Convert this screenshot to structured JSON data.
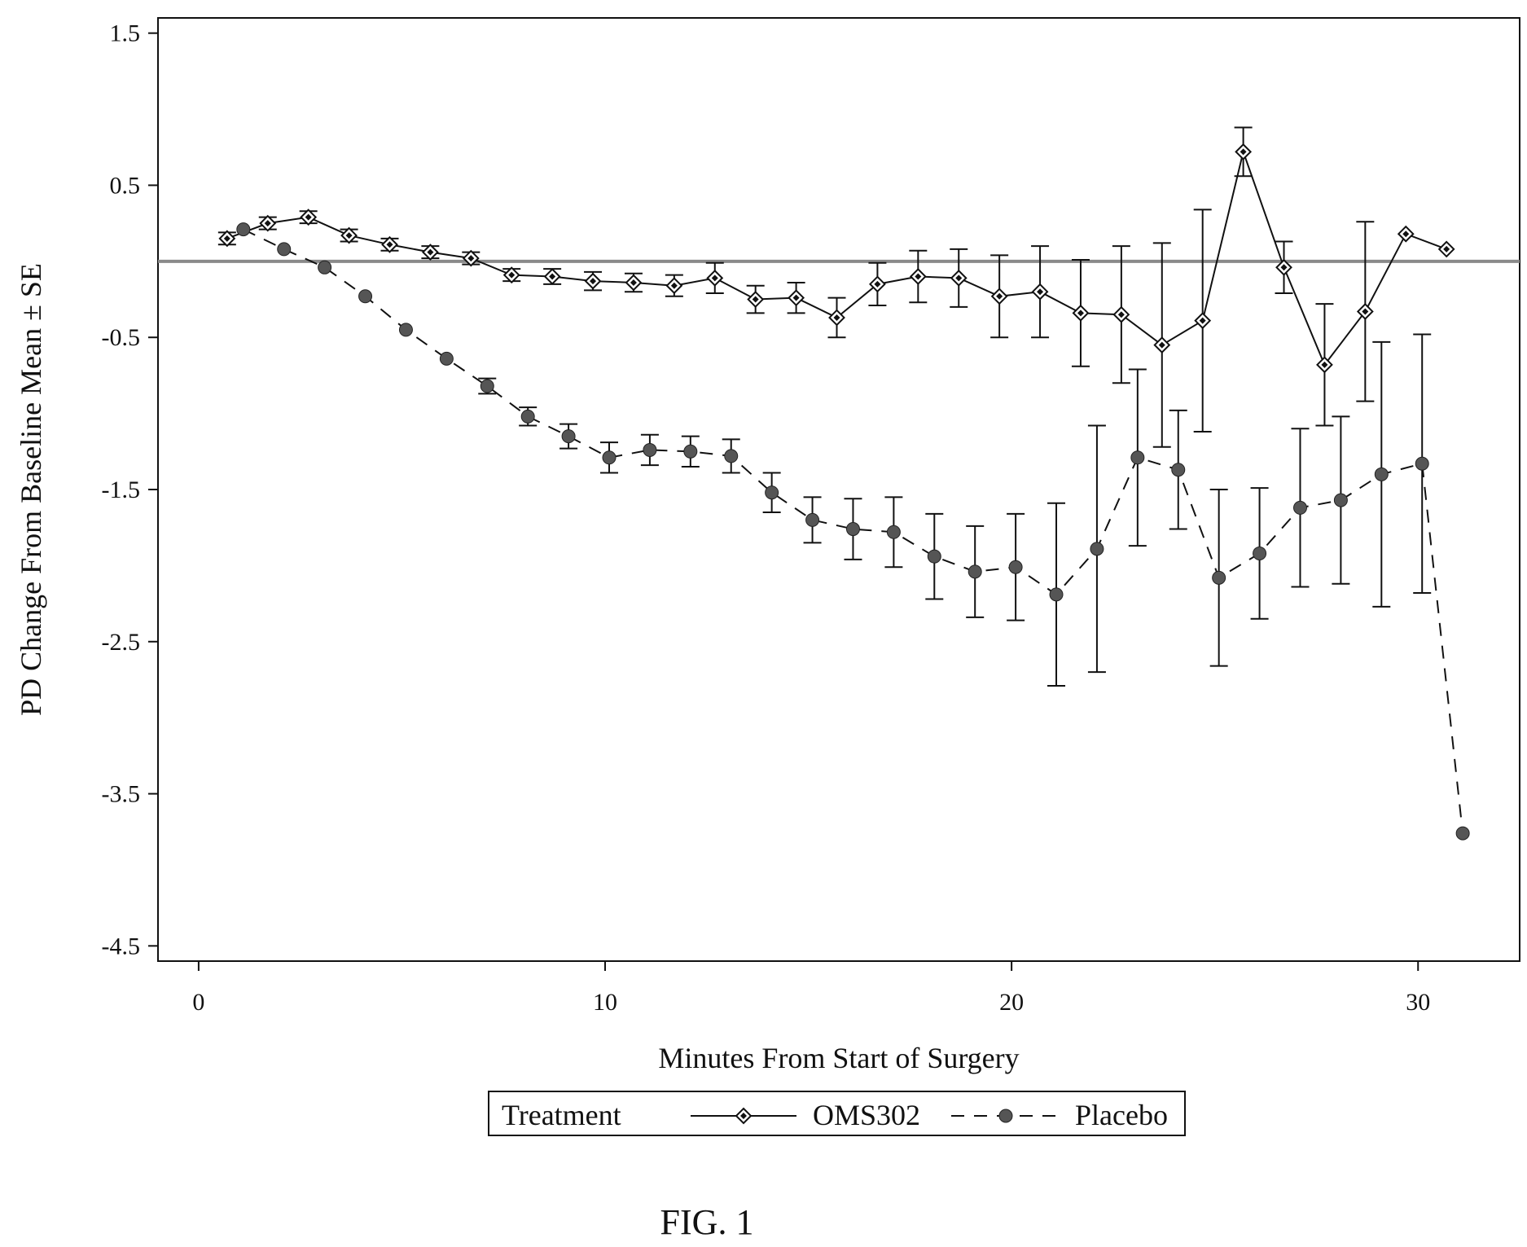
{
  "figure_caption": "FIG. 1",
  "chart_data": {
    "type": "line",
    "xlabel": "Minutes From Start of Surgery",
    "ylabel": "PD Change From Baseline Mean ± SE",
    "xlim": [
      -1,
      32.5
    ],
    "ylim": [
      -4.6,
      1.6
    ],
    "x_ticks": [
      0,
      10,
      20,
      30
    ],
    "y_ticks": [
      1.5,
      0.5,
      -0.5,
      -1.5,
      -2.5,
      -3.5,
      -4.5
    ],
    "y_tick_labels": [
      "1.5",
      "0.5",
      "-0.5",
      "-1.5",
      "-2.5",
      "-3.5",
      "-4.5"
    ],
    "reference_line": 0,
    "grid": false,
    "legend": {
      "title": "Treatment",
      "placement": "bottom",
      "entries": [
        "OMS302",
        "Placebo"
      ]
    },
    "series": [
      {
        "name": "OMS302",
        "marker": "diamond-open",
        "line": "solid",
        "color": "#111111",
        "points": [
          {
            "x": 0.7,
            "y": 0.15,
            "se": 0.04
          },
          {
            "x": 1.7,
            "y": 0.25,
            "se": 0.04
          },
          {
            "x": 2.7,
            "y": 0.29,
            "se": 0.04
          },
          {
            "x": 3.7,
            "y": 0.17,
            "se": 0.04
          },
          {
            "x": 4.7,
            "y": 0.11,
            "se": 0.04
          },
          {
            "x": 5.7,
            "y": 0.06,
            "se": 0.04
          },
          {
            "x": 6.7,
            "y": 0.02,
            "se": 0.04
          },
          {
            "x": 7.7,
            "y": -0.09,
            "se": 0.04
          },
          {
            "x": 8.7,
            "y": -0.1,
            "se": 0.05
          },
          {
            "x": 9.7,
            "y": -0.13,
            "se": 0.06
          },
          {
            "x": 10.7,
            "y": -0.14,
            "se": 0.06
          },
          {
            "x": 11.7,
            "y": -0.16,
            "se": 0.07
          },
          {
            "x": 12.7,
            "y": -0.11,
            "se": 0.1
          },
          {
            "x": 13.7,
            "y": -0.25,
            "se": 0.09
          },
          {
            "x": 14.7,
            "y": -0.24,
            "se": 0.1
          },
          {
            "x": 15.7,
            "y": -0.37,
            "se": 0.13
          },
          {
            "x": 16.7,
            "y": -0.15,
            "se": 0.14
          },
          {
            "x": 17.7,
            "y": -0.1,
            "se": 0.17
          },
          {
            "x": 18.7,
            "y": -0.11,
            "se": 0.19
          },
          {
            "x": 19.7,
            "y": -0.23,
            "se": 0.27
          },
          {
            "x": 20.7,
            "y": -0.2,
            "se": 0.3
          },
          {
            "x": 21.7,
            "y": -0.34,
            "se": 0.35
          },
          {
            "x": 22.7,
            "y": -0.35,
            "se": 0.45
          },
          {
            "x": 23.7,
            "y": -0.55,
            "se": 0.67
          },
          {
            "x": 24.7,
            "y": -0.39,
            "se": 0.73
          },
          {
            "x": 25.7,
            "y": 0.72,
            "se": 0.16
          },
          {
            "x": 26.7,
            "y": -0.04,
            "se": 0.17
          },
          {
            "x": 27.7,
            "y": -0.68,
            "se": 0.4
          },
          {
            "x": 28.7,
            "y": -0.33,
            "se": 0.59
          },
          {
            "x": 29.7,
            "y": 0.18
          },
          {
            "x": 30.7,
            "y": 0.08
          }
        ]
      },
      {
        "name": "Placebo",
        "marker": "circle-filled",
        "line": "dashed",
        "color": "#555555",
        "points": [
          {
            "x": 1.1,
            "y": 0.21
          },
          {
            "x": 2.1,
            "y": 0.08
          },
          {
            "x": 3.1,
            "y": -0.04
          },
          {
            "x": 4.1,
            "y": -0.23
          },
          {
            "x": 5.1,
            "y": -0.45
          },
          {
            "x": 6.1,
            "y": -0.64
          },
          {
            "x": 7.1,
            "y": -0.82,
            "se": 0.05
          },
          {
            "x": 8.1,
            "y": -1.02,
            "se": 0.06
          },
          {
            "x": 9.1,
            "y": -1.15,
            "se": 0.08
          },
          {
            "x": 10.1,
            "y": -1.29,
            "se": 0.1
          },
          {
            "x": 11.1,
            "y": -1.24,
            "se": 0.1
          },
          {
            "x": 12.1,
            "y": -1.25,
            "se": 0.1
          },
          {
            "x": 13.1,
            "y": -1.28,
            "se": 0.11
          },
          {
            "x": 14.1,
            "y": -1.52,
            "se": 0.13
          },
          {
            "x": 15.1,
            "y": -1.7,
            "se": 0.15
          },
          {
            "x": 16.1,
            "y": -1.76,
            "se": 0.2
          },
          {
            "x": 17.1,
            "y": -1.78,
            "se": 0.23
          },
          {
            "x": 18.1,
            "y": -1.94,
            "se": 0.28
          },
          {
            "x": 19.1,
            "y": -2.04,
            "se": 0.3
          },
          {
            "x": 20.1,
            "y": -2.01,
            "se": 0.35
          },
          {
            "x": 21.1,
            "y": -2.19,
            "se": 0.6
          },
          {
            "x": 22.1,
            "y": -1.89,
            "se": 0.81
          },
          {
            "x": 23.1,
            "y": -1.29,
            "se": 0.58
          },
          {
            "x": 24.1,
            "y": -1.37,
            "se": 0.39
          },
          {
            "x": 25.1,
            "y": -2.08,
            "se": 0.58
          },
          {
            "x": 26.1,
            "y": -1.92,
            "se": 0.43
          },
          {
            "x": 27.1,
            "y": -1.62,
            "se": 0.52
          },
          {
            "x": 28.1,
            "y": -1.57,
            "se": 0.55
          },
          {
            "x": 29.1,
            "y": -1.4,
            "se": 0.87
          },
          {
            "x": 30.1,
            "y": -1.33,
            "se": 0.85
          },
          {
            "x": 31.1,
            "y": -3.76
          }
        ]
      }
    ]
  }
}
